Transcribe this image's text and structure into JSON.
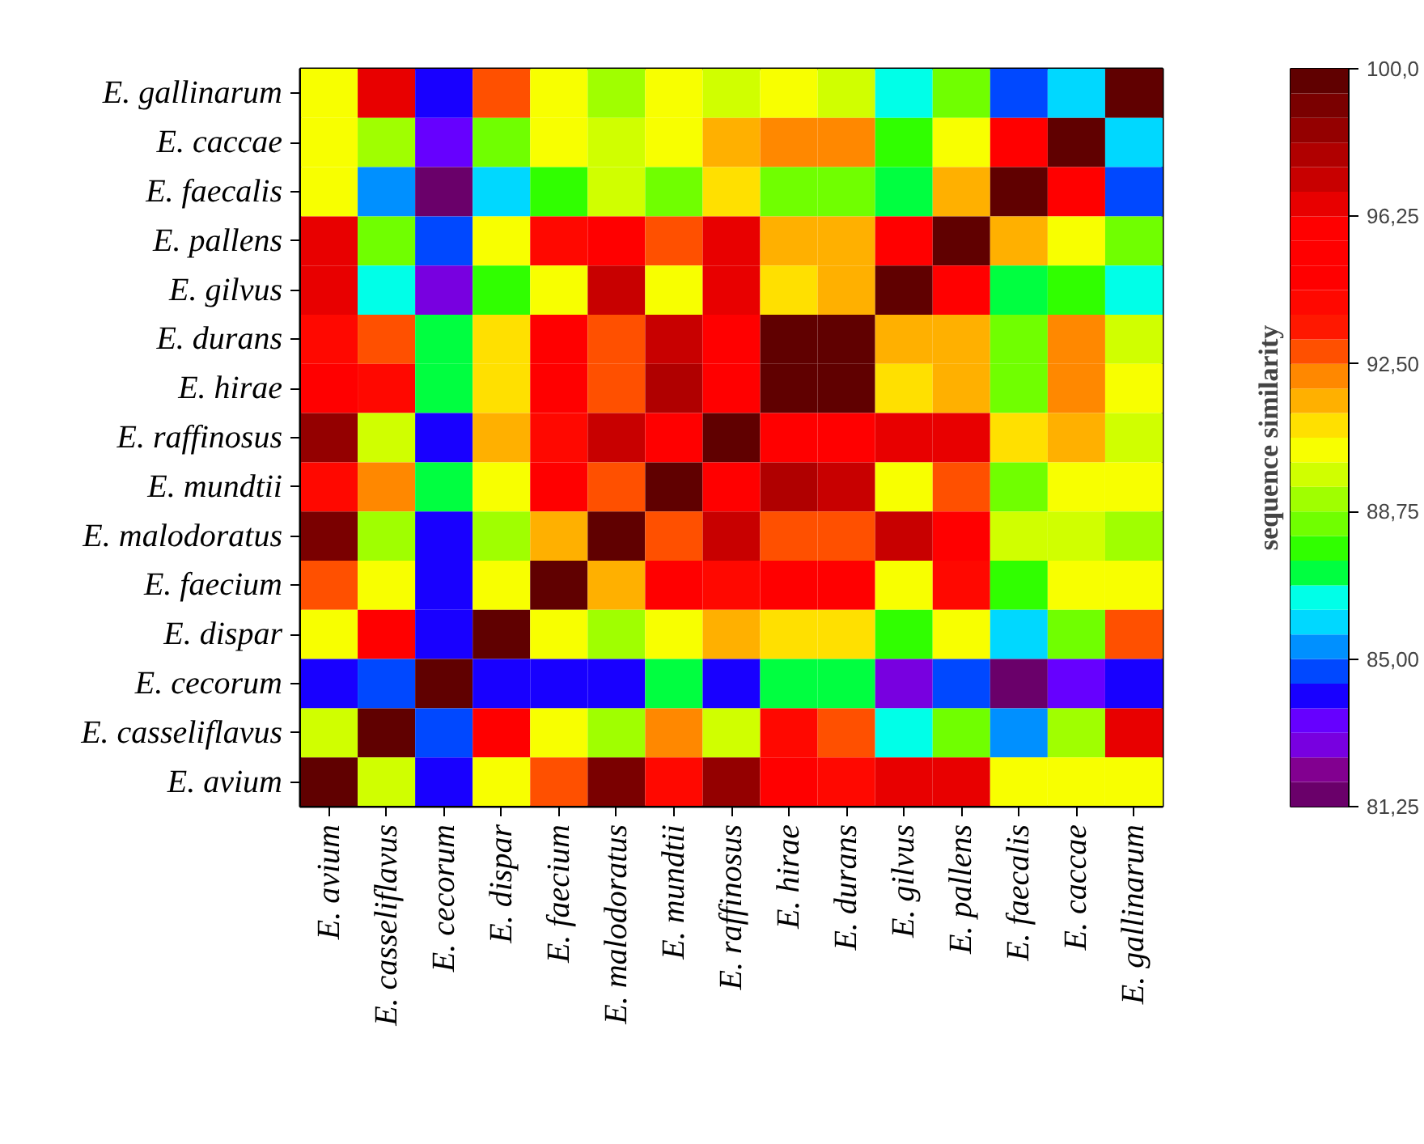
{
  "chart_data": {
    "type": "heatmap",
    "clabel": "sequence similarity",
    "categories": [
      "E. avium",
      "E. casseliflavus",
      "E. cecorum",
      "E. dispar",
      "E. faecium",
      "E. malodoratus",
      "E. mundtii",
      "E. raffinosus",
      "E. hirae",
      "E. durans",
      "E. gilvus",
      "E. pallens",
      "E. faecalis",
      "E. caccae",
      "E. gallinarum"
    ],
    "y_categories": [
      "E. gallinarum",
      "E. caccae",
      "E. faecalis",
      "E. pallens",
      "E. gilvus",
      "E. durans",
      "E. hirae",
      "E. raffinosus",
      "E. mundtii",
      "E. malodoratus",
      "E. faecium",
      "E. dispar",
      "E. cecorum",
      "E. casseliflavus",
      "E. avium"
    ],
    "cells": [
      [
        90.3,
        96.6,
        84.1,
        92.8,
        90.3,
        89.1,
        90.3,
        89.7,
        90.3,
        89.7,
        86.6,
        88.4,
        84.7,
        85.9,
        100
      ],
      [
        90.3,
        89.1,
        83.4,
        88.4,
        90.3,
        89.7,
        90.3,
        91.6,
        92.2,
        92.2,
        87.8,
        90.3,
        95.3,
        100,
        85.9
      ],
      [
        90.3,
        85.3,
        81.6,
        85.9,
        87.8,
        89.7,
        88.4,
        90.9,
        88.4,
        88.4,
        87.2,
        91.6,
        100,
        95.3,
        84.7
      ],
      [
        96.6,
        88.4,
        84.7,
        90.3,
        94.1,
        95.3,
        92.8,
        96.6,
        91.6,
        91.6,
        95.3,
        100,
        91.6,
        90.3,
        88.4
      ],
      [
        96.6,
        86.6,
        82.8,
        87.8,
        90.3,
        97.2,
        90.3,
        96.6,
        90.9,
        91.6,
        100,
        95.3,
        87.2,
        87.8,
        86.6
      ],
      [
        94.1,
        92.8,
        87.2,
        90.9,
        95.3,
        92.8,
        97.2,
        95.3,
        99.7,
        100,
        91.6,
        91.6,
        88.4,
        92.2,
        89.7
      ],
      [
        95.3,
        94.1,
        87.2,
        90.9,
        95.3,
        92.8,
        97.8,
        95.3,
        100,
        99.7,
        90.9,
        91.6,
        88.4,
        92.2,
        90.3
      ],
      [
        98.4,
        89.7,
        84.1,
        91.6,
        94.1,
        97.2,
        95.3,
        100,
        95.3,
        95.3,
        96.6,
        96.6,
        90.9,
        91.6,
        89.7
      ],
      [
        94.1,
        92.2,
        87.2,
        90.3,
        95.3,
        92.8,
        100,
        95.3,
        97.8,
        97.2,
        90.3,
        92.8,
        88.4,
        90.3,
        90.3
      ],
      [
        99.1,
        89.1,
        84.1,
        89.1,
        91.6,
        100,
        92.8,
        97.2,
        92.8,
        92.8,
        97.2,
        95.3,
        89.7,
        89.7,
        89.1
      ],
      [
        92.8,
        90.3,
        84.1,
        90.3,
        100,
        91.6,
        95.3,
        94.1,
        95.3,
        95.3,
        90.3,
        94.1,
        87.8,
        90.3,
        90.3
      ],
      [
        90.3,
        95.3,
        84.1,
        100,
        90.3,
        89.1,
        90.3,
        91.6,
        90.9,
        90.9,
        87.8,
        90.3,
        85.9,
        88.4,
        92.8
      ],
      [
        84.1,
        84.7,
        100,
        84.1,
        84.1,
        84.1,
        87.2,
        84.1,
        87.2,
        87.2,
        82.8,
        84.7,
        81.6,
        83.4,
        84.1
      ],
      [
        89.7,
        100,
        84.7,
        95.3,
        90.3,
        89.1,
        92.2,
        89.7,
        94.1,
        92.8,
        86.6,
        88.4,
        85.3,
        89.1,
        96.6
      ],
      [
        100,
        89.7,
        84.1,
        90.3,
        92.8,
        99.1,
        94.1,
        98.4,
        95.3,
        94.1,
        96.6,
        96.6,
        90.3,
        90.3,
        90.3
      ]
    ],
    "clim": [
      81.25,
      100
    ],
    "cticks": [
      {
        "value": 81.25,
        "label": "81,25"
      },
      {
        "value": 85,
        "label": "85,00"
      },
      {
        "value": 88.75,
        "label": "88,75"
      },
      {
        "value": 92.5,
        "label": "92,50"
      },
      {
        "value": 96.25,
        "label": "96,25"
      },
      {
        "value": 100,
        "label": "100,0"
      }
    ],
    "grid": false
  }
}
